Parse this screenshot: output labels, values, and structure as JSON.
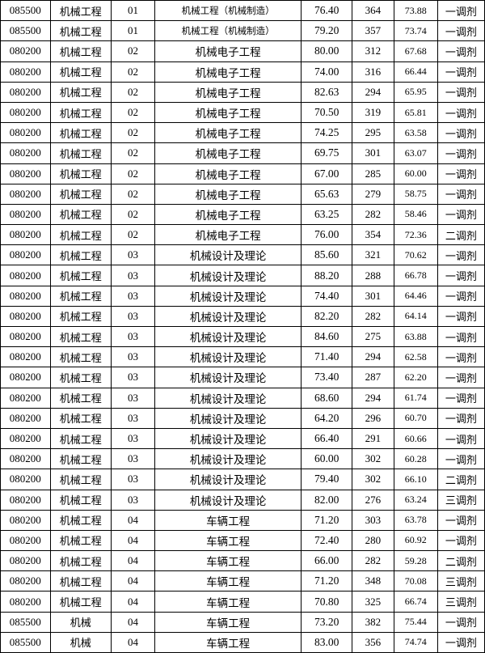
{
  "table": {
    "columns": [
      {
        "key": "code",
        "class": "col0"
      },
      {
        "key": "major",
        "class": "col1"
      },
      {
        "key": "subcode",
        "class": "col2"
      },
      {
        "key": "direction",
        "class": "col3"
      },
      {
        "key": "score1",
        "class": "col4"
      },
      {
        "key": "score2",
        "class": "col5"
      },
      {
        "key": "score3",
        "class": "col6"
      },
      {
        "key": "type",
        "class": "col7"
      }
    ],
    "rows": [
      [
        "085500",
        "机械工程",
        "01",
        "机械工程（机械制造）",
        "76.40",
        "364",
        "73.88",
        "一调剂"
      ],
      [
        "085500",
        "机械工程",
        "01",
        "机械工程（机械制造）",
        "79.20",
        "357",
        "73.74",
        "一调剂"
      ],
      [
        "080200",
        "机械工程",
        "02",
        "机械电子工程",
        "80.00",
        "312",
        "67.68",
        "一调剂"
      ],
      [
        "080200",
        "机械工程",
        "02",
        "机械电子工程",
        "74.00",
        "316",
        "66.44",
        "一调剂"
      ],
      [
        "080200",
        "机械工程",
        "02",
        "机械电子工程",
        "82.63",
        "294",
        "65.95",
        "一调剂"
      ],
      [
        "080200",
        "机械工程",
        "02",
        "机械电子工程",
        "70.50",
        "319",
        "65.81",
        "一调剂"
      ],
      [
        "080200",
        "机械工程",
        "02",
        "机械电子工程",
        "74.25",
        "295",
        "63.58",
        "一调剂"
      ],
      [
        "080200",
        "机械工程",
        "02",
        "机械电子工程",
        "69.75",
        "301",
        "63.07",
        "一调剂"
      ],
      [
        "080200",
        "机械工程",
        "02",
        "机械电子工程",
        "67.00",
        "285",
        "60.00",
        "一调剂"
      ],
      [
        "080200",
        "机械工程",
        "02",
        "机械电子工程",
        "65.63",
        "279",
        "58.75",
        "一调剂"
      ],
      [
        "080200",
        "机械工程",
        "02",
        "机械电子工程",
        "63.25",
        "282",
        "58.46",
        "一调剂"
      ],
      [
        "080200",
        "机械工程",
        "02",
        "机械电子工程",
        "76.00",
        "354",
        "72.36",
        "二调剂"
      ],
      [
        "080200",
        "机械工程",
        "03",
        "机械设计及理论",
        "85.60",
        "321",
        "70.62",
        "一调剂"
      ],
      [
        "080200",
        "机械工程",
        "03",
        "机械设计及理论",
        "88.20",
        "288",
        "66.78",
        "一调剂"
      ],
      [
        "080200",
        "机械工程",
        "03",
        "机械设计及理论",
        "74.40",
        "301",
        "64.46",
        "一调剂"
      ],
      [
        "080200",
        "机械工程",
        "03",
        "机械设计及理论",
        "82.20",
        "282",
        "64.14",
        "一调剂"
      ],
      [
        "080200",
        "机械工程",
        "03",
        "机械设计及理论",
        "84.60",
        "275",
        "63.88",
        "一调剂"
      ],
      [
        "080200",
        "机械工程",
        "03",
        "机械设计及理论",
        "71.40",
        "294",
        "62.58",
        "一调剂"
      ],
      [
        "080200",
        "机械工程",
        "03",
        "机械设计及理论",
        "73.40",
        "287",
        "62.20",
        "一调剂"
      ],
      [
        "080200",
        "机械工程",
        "03",
        "机械设计及理论",
        "68.60",
        "294",
        "61.74",
        "一调剂"
      ],
      [
        "080200",
        "机械工程",
        "03",
        "机械设计及理论",
        "64.20",
        "296",
        "60.70",
        "一调剂"
      ],
      [
        "080200",
        "机械工程",
        "03",
        "机械设计及理论",
        "66.40",
        "291",
        "60.66",
        "一调剂"
      ],
      [
        "080200",
        "机械工程",
        "03",
        "机械设计及理论",
        "60.00",
        "302",
        "60.28",
        "一调剂"
      ],
      [
        "080200",
        "机械工程",
        "03",
        "机械设计及理论",
        "79.40",
        "302",
        "66.10",
        "二调剂"
      ],
      [
        "080200",
        "机械工程",
        "03",
        "机械设计及理论",
        "82.00",
        "276",
        "63.24",
        "三调剂"
      ],
      [
        "080200",
        "机械工程",
        "04",
        "车辆工程",
        "71.20",
        "303",
        "63.78",
        "一调剂"
      ],
      [
        "080200",
        "机械工程",
        "04",
        "车辆工程",
        "72.40",
        "280",
        "60.92",
        "一调剂"
      ],
      [
        "080200",
        "机械工程",
        "04",
        "车辆工程",
        "66.00",
        "282",
        "59.28",
        "二调剂"
      ],
      [
        "080200",
        "机械工程",
        "04",
        "车辆工程",
        "71.20",
        "348",
        "70.08",
        "三调剂"
      ],
      [
        "080200",
        "机械工程",
        "04",
        "车辆工程",
        "70.80",
        "325",
        "66.74",
        "三调剂"
      ],
      [
        "085500",
        "机械",
        "04",
        "车辆工程",
        "73.20",
        "382",
        "75.44",
        "一调剂"
      ],
      [
        "085500",
        "机械",
        "04",
        "车辆工程",
        "83.00",
        "356",
        "74.74",
        "一调剂"
      ]
    ],
    "smallRows": [
      0,
      1
    ]
  }
}
